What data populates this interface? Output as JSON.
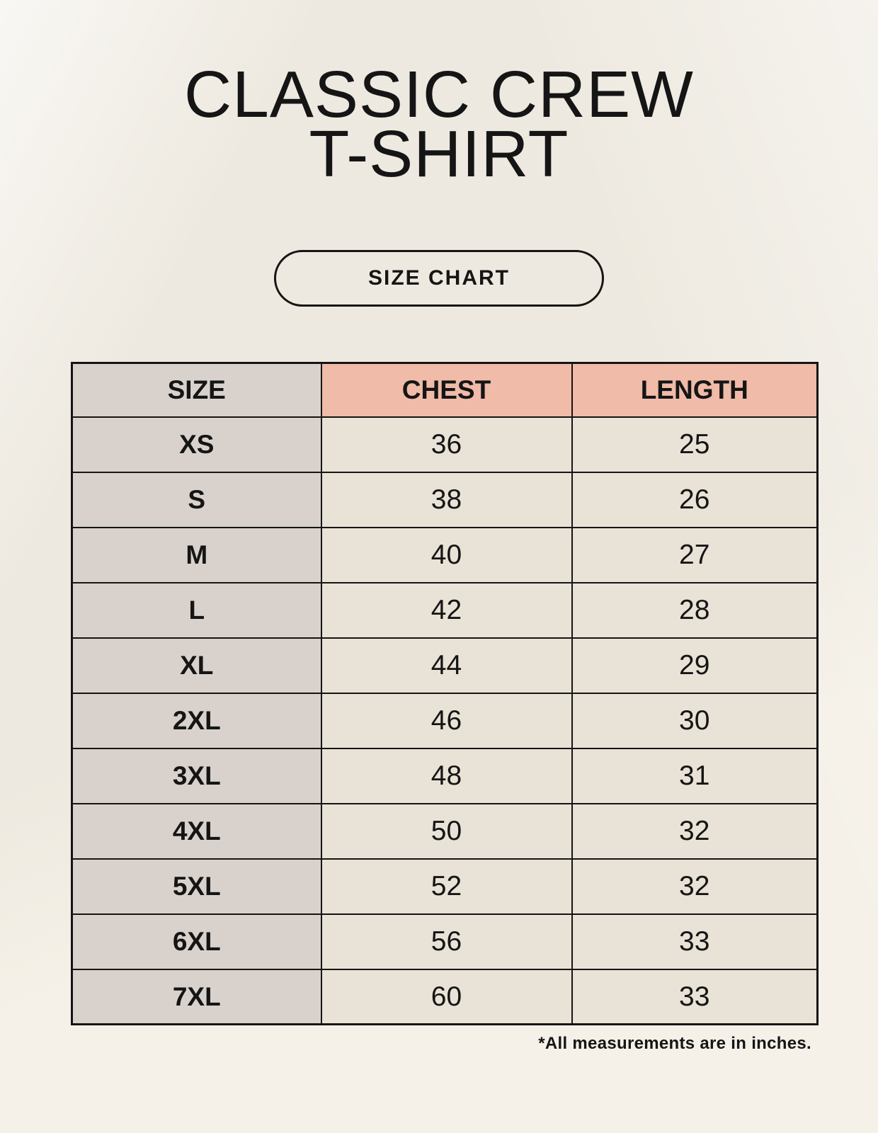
{
  "page": {
    "title_line1": "CLASSIC CREW",
    "title_line2": "T-SHIRT",
    "button_label": "SIZE CHART",
    "footnote": "*All measurements are in inches."
  },
  "colors": {
    "background": "#f5f1e8",
    "size_column_bg": "#d9d2cc",
    "header_accent_bg": "#f0bba8",
    "cell_bg": "#e9e2d6",
    "border": "#151515",
    "text": "#151515"
  },
  "chart_data": {
    "type": "table",
    "title": "CLASSIC CREW T-SHIRT",
    "columns": [
      "SIZE",
      "CHEST",
      "LENGTH"
    ],
    "rows": [
      [
        "XS",
        "36",
        "25"
      ],
      [
        "S",
        "38",
        "26"
      ],
      [
        "M",
        "40",
        "27"
      ],
      [
        "L",
        "42",
        "28"
      ],
      [
        "XL",
        "44",
        "29"
      ],
      [
        "2XL",
        "46",
        "30"
      ],
      [
        "3XL",
        "48",
        "31"
      ],
      [
        "4XL",
        "50",
        "32"
      ],
      [
        "5XL",
        "52",
        "32"
      ],
      [
        "6XL",
        "56",
        "33"
      ],
      [
        "7XL",
        "60",
        "33"
      ]
    ],
    "note": "*All measurements are in inches.",
    "units": "inches"
  }
}
